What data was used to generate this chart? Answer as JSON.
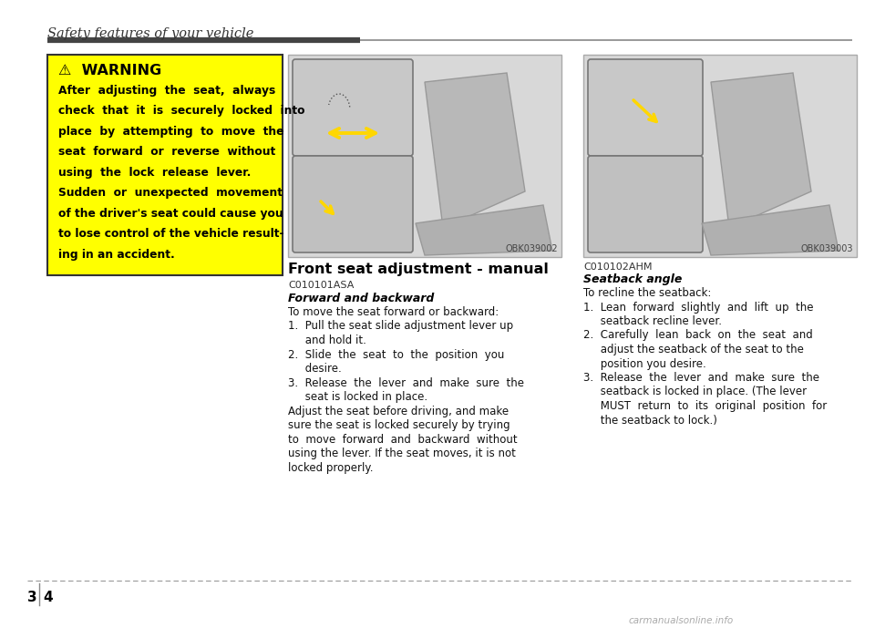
{
  "bg_color": "#ffffff",
  "header_title": "Safety features of your vehicle",
  "header_line_color": "#555555",
  "warning_box_color": "#FFFF00",
  "warning_box_border": "#333333",
  "warning_title": "⚠  WARNING",
  "warning_text_lines": [
    "After  adjusting  the  seat,  always",
    "check  that  it  is  securely  locked  into",
    "place  by  attempting  to  move  the",
    "seat  forward  or  reverse  without",
    "using  the  lock  release  lever.",
    "Sudden  or  unexpected  movement",
    "of the driver's seat could cause you",
    "to lose control of the vehicle result-",
    "ing in an accident."
  ],
  "section_title": "Front seat adjustment - manual",
  "section_code": "C010101ASA",
  "subsection_title": "Forward and backward",
  "body_lines_left": [
    "To move the seat forward or backward:",
    "1.  Pull the seat slide adjustment lever up",
    "     and hold it.",
    "2.  Slide  the  seat  to  the  position  you",
    "     desire.",
    "3.  Release  the  lever  and  make  sure  the",
    "     seat is locked in place.",
    "Adjust the seat before driving, and make",
    "sure the seat is locked securely by trying",
    "to  move  forward  and  backward  without",
    "using the lever. If the seat moves, it is not",
    "locked properly."
  ],
  "img_code_left": "OBK039002",
  "section_code_right": "C010102AHM",
  "subsection_title_right": "Seatback angle",
  "body_lines_right": [
    "To recline the seatback:",
    "1.  Lean  forward  slightly  and  lift  up  the",
    "     seatback recline lever.",
    "2.  Carefully  lean  back  on  the  seat  and",
    "     adjust the seatback of the seat to the",
    "     position you desire.",
    "3.  Release  the  lever  and  make  sure  the",
    "     seatback is locked in place. (The lever",
    "     MUST  return  to  its  original  position  for",
    "     the seatback to lock.)"
  ],
  "img_code_right": "OBK039003",
  "footer_line_color": "#999999",
  "watermark_text": "carmanualsonline.info",
  "page_num_3": "3",
  "page_num_4": "4",
  "img_bg": "#e0e0e0",
  "inset_bg": "#cccccc"
}
